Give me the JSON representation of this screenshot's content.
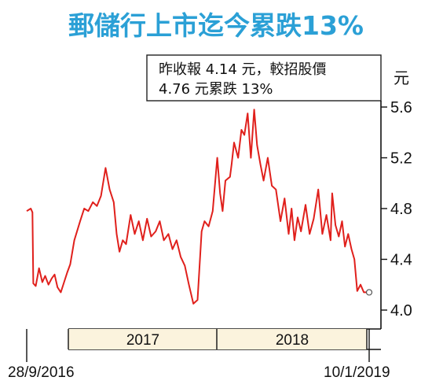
{
  "chart_data": {
    "type": "line",
    "title": "郵儲行上市迄今累跌13%",
    "ylabel": "元",
    "ylim": [
      4.0,
      5.6
    ],
    "yticks": [
      "5.6",
      "5.2",
      "4.8",
      "4.4",
      "4.0"
    ],
    "x_start": "28/9/2016",
    "x_end": "10/1/2019",
    "x_range": [
      "2016-09-28",
      "2019-01-10"
    ],
    "year_labels": [
      "2017",
      "2018"
    ],
    "annotation": [
      "昨收報 4.14 元，較招股價",
      "4.76 元累跌 13%"
    ],
    "grid": false,
    "line_color": "#e0201c",
    "series": [
      {
        "x": [
          "2016-09-28",
          "2016-10-08",
          "2016-10-12",
          "2016-10-14",
          "2016-10-20",
          "2016-10-28",
          "2016-11-05",
          "2016-11-12",
          "2016-11-20",
          "2016-11-28",
          "2016-12-05",
          "2016-12-12",
          "2016-12-20",
          "2016-12-28",
          "2017-01-05",
          "2017-01-12",
          "2017-01-22",
          "2017-02-05",
          "2017-02-15",
          "2017-02-25",
          "2017-03-08",
          "2017-03-18",
          "2017-03-28",
          "2017-04-08",
          "2017-04-18",
          "2017-04-28",
          "2017-05-05",
          "2017-05-12",
          "2017-05-20",
          "2017-05-28",
          "2017-06-08",
          "2017-06-18",
          "2017-06-28",
          "2017-07-08",
          "2017-07-18",
          "2017-07-28",
          "2017-08-08",
          "2017-08-18",
          "2017-08-28",
          "2017-09-08",
          "2017-09-18",
          "2017-09-28",
          "2017-10-08",
          "2017-10-18",
          "2017-10-28",
          "2017-11-08",
          "2017-11-18",
          "2017-11-28",
          "2017-12-05",
          "2017-12-15",
          "2017-12-25",
          "2018-01-05",
          "2018-01-12",
          "2018-01-18",
          "2018-01-25",
          "2018-02-05",
          "2018-02-09",
          "2018-02-15",
          "2018-02-25",
          "2018-03-05",
          "2018-03-12",
          "2018-03-20",
          "2018-03-28",
          "2018-04-05",
          "2018-04-12",
          "2018-04-20",
          "2018-04-28",
          "2018-05-08",
          "2018-05-18",
          "2018-05-28",
          "2018-06-08",
          "2018-06-18",
          "2018-06-28",
          "2018-07-05",
          "2018-07-12",
          "2018-07-20",
          "2018-07-28",
          "2018-08-08",
          "2018-08-18",
          "2018-08-28",
          "2018-09-08",
          "2018-09-18",
          "2018-09-28",
          "2018-10-08",
          "2018-10-12",
          "2018-10-20",
          "2018-10-28",
          "2018-11-05",
          "2018-11-12",
          "2018-11-20",
          "2018-11-28",
          "2018-12-05",
          "2018-12-12",
          "2018-12-20",
          "2018-12-28",
          "2019-01-03",
          "2019-01-10"
        ],
        "y": [
          4.78,
          4.8,
          4.77,
          4.21,
          4.19,
          4.33,
          4.22,
          4.27,
          4.2,
          4.25,
          4.28,
          4.18,
          4.14,
          4.22,
          4.3,
          4.36,
          4.55,
          4.7,
          4.8,
          4.78,
          4.85,
          4.82,
          4.9,
          5.12,
          4.95,
          4.85,
          4.6,
          4.46,
          4.55,
          4.52,
          4.75,
          4.6,
          4.7,
          4.55,
          4.72,
          4.58,
          4.62,
          4.7,
          4.55,
          4.6,
          4.48,
          4.55,
          4.42,
          4.35,
          4.2,
          4.05,
          4.08,
          4.62,
          4.7,
          4.66,
          4.78,
          5.2,
          4.92,
          4.78,
          5.02,
          5.05,
          5.15,
          5.32,
          5.2,
          5.42,
          5.38,
          5.55,
          5.2,
          5.58,
          5.3,
          5.15,
          5.02,
          5.2,
          4.98,
          4.95,
          4.7,
          4.88,
          4.6,
          4.8,
          4.55,
          4.73,
          4.62,
          4.83,
          4.6,
          4.72,
          4.95,
          4.6,
          4.75,
          4.55,
          4.92,
          4.67,
          4.58,
          4.7,
          4.5,
          4.6,
          4.48,
          4.4,
          4.15,
          4.2,
          4.14,
          4.14,
          4.14
        ]
      }
    ]
  }
}
